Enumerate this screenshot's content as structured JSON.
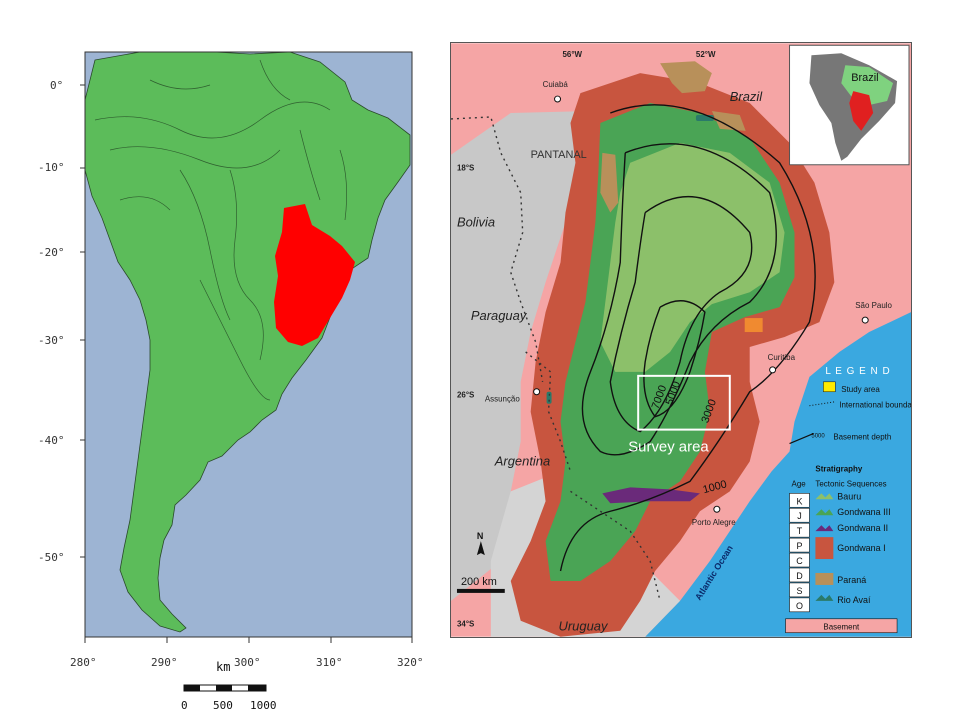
{
  "left_map": {
    "lat_ticks": [
      "0°",
      "-10°",
      "-20°",
      "-30°",
      "-40°",
      "-50°"
    ],
    "lon_ticks": [
      "280°",
      "290°",
      "300°",
      "310°",
      "320°"
    ],
    "scale": {
      "unit": "km",
      "labels": [
        "0",
        "500",
        "1000"
      ]
    },
    "colors": {
      "ocean": "#9db4d3",
      "land": "#5cbc5a",
      "highlight": "#ff0000",
      "rivers": "#2f5f2f"
    }
  },
  "right_map": {
    "coords": {
      "lon_56": "56°W",
      "lon_52": "52°W",
      "lat_18": "18°S",
      "lat_26": "26°S",
      "lat_34": "34°S"
    },
    "labels": {
      "brazil": "Brazil",
      "bolivia": "Bolivia",
      "paraguay": "Paraguay",
      "argentina": "Argentina",
      "uruguay": "Uruguay",
      "pantanal": "PANTANAL",
      "atlantic": "Atlantic Ocean"
    },
    "cities": {
      "cuiaba": "Cuiabá",
      "sao_paulo": "São Paulo",
      "curitiba": "Curitiba",
      "assuncao": "Assunção",
      "porto_alegre": "Porto Alegre"
    },
    "contours": {
      "c7000": "7000",
      "c5000": "5000",
      "c3000": "3000",
      "c1000": "1000"
    },
    "survey_label": "Survey area",
    "inset_label": "Brazil",
    "north": "N",
    "scale_label": "200 km",
    "legend": {
      "title": "L E G E N D",
      "study_area": "Study area",
      "boundary": "International boundary",
      "depth_value": "5000",
      "depth_label": "Basement depth"
    },
    "stratigraphy": {
      "title": "Stratigraphy",
      "age_header": "Age",
      "seq_header": "Tectonic Sequences",
      "ages": [
        "K",
        "J",
        "T",
        "P",
        "C",
        "D",
        "S",
        "O"
      ],
      "sequences": [
        {
          "name": "Bauru",
          "color": "#8cc06a"
        },
        {
          "name": "Gondwana III",
          "color": "#4aa455"
        },
        {
          "name": "Gondwana II",
          "color": "#6a2a7a"
        },
        {
          "name": "Gondwana I",
          "color": "#c8553f"
        },
        {
          "name": "Paraná",
          "color": "#b8905a"
        },
        {
          "name": "Rio Avaí",
          "color": "#2a7a6a"
        }
      ],
      "basement": "Basement"
    },
    "colors": {
      "basement": "#f5a5a5",
      "ocean": "#3aa8e0",
      "grey": "#c8c8c8",
      "study": "#f08a30"
    }
  }
}
